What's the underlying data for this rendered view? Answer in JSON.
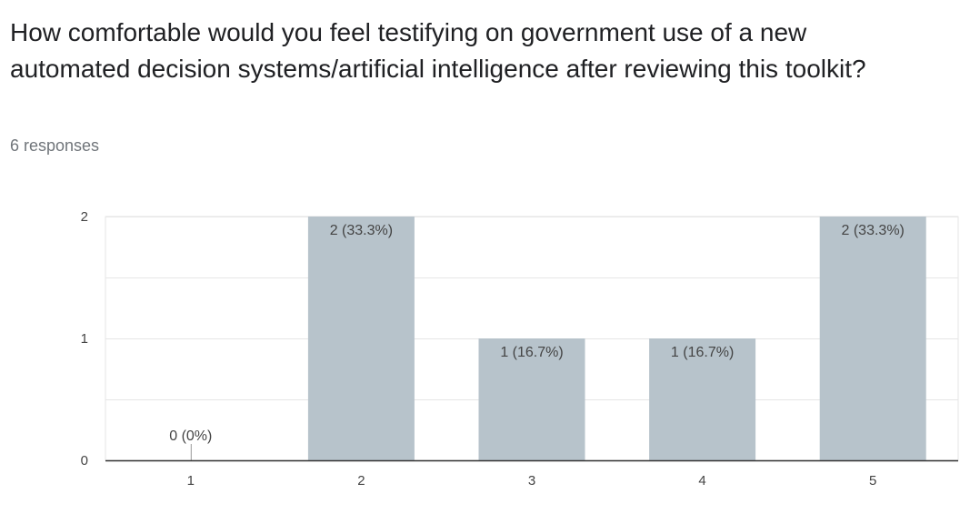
{
  "question": {
    "title": "How comfortable would you feel testifying on government use of a new automated decision systems/artificial intelligence after reviewing this toolkit?",
    "responses": "6 responses"
  },
  "chart_data": {
    "type": "bar",
    "categories": [
      "1",
      "2",
      "3",
      "4",
      "5"
    ],
    "values": [
      0,
      2,
      1,
      1,
      2
    ],
    "data_labels": [
      "0 (0%)",
      "2 (33.3%)",
      "1 (16.7%)",
      "1 (16.7%)",
      "2 (33.3%)"
    ],
    "ylim": [
      0,
      2
    ],
    "yticks": [
      "0",
      "1",
      "2"
    ],
    "grid": true,
    "bar_color": "#b7c3cb",
    "grid_color": "#e6e6e6",
    "axis_color": "#333333"
  }
}
